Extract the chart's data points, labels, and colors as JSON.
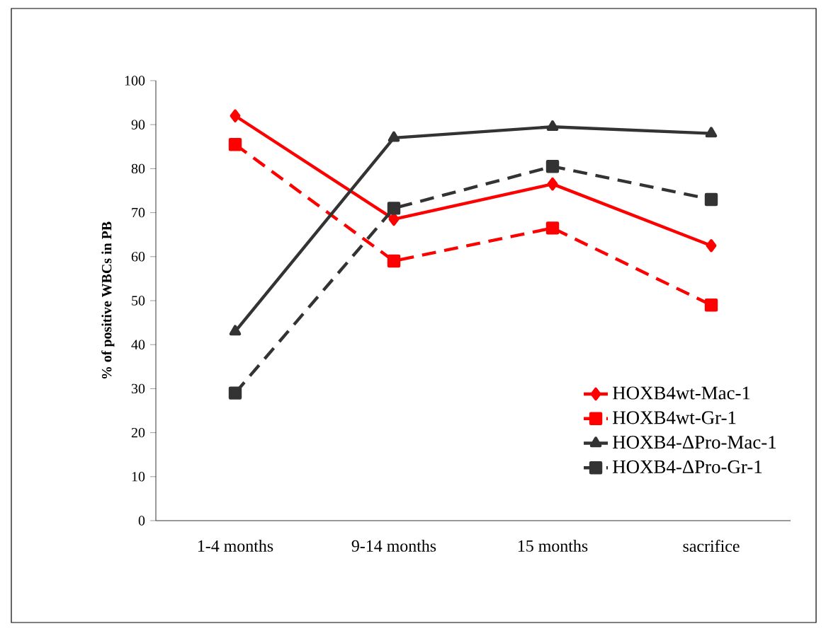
{
  "chart_data": {
    "type": "line",
    "ylabel": "% of positive WBCs in PB",
    "categories": [
      "1-4 months",
      "9-14 months",
      "15 months",
      "sacrifice"
    ],
    "series": [
      {
        "name": "HOXB4wt-Mac-1",
        "color": "#ff0000",
        "marker": "diamond",
        "line_style": "solid",
        "values": [
          92,
          68.5,
          76.5,
          62.5
        ]
      },
      {
        "name": "HOXB4wt-Gr-1",
        "color": "#ff0000",
        "marker": "square",
        "line_style": "dashed",
        "values": [
          85.5,
          59,
          66.5,
          49
        ]
      },
      {
        "name": "HOXB4-ΔPro-Mac-1",
        "color": "#333333",
        "marker": "triangle",
        "line_style": "solid",
        "values": [
          43,
          87,
          89.5,
          88
        ]
      },
      {
        "name": "HOXB4-ΔPro-Gr-1",
        "color": "#333333",
        "marker": "square",
        "line_style": "dashed",
        "values": [
          29,
          71,
          80.5,
          73
        ]
      }
    ],
    "ylim": [
      0,
      100
    ],
    "yticks": [
      0,
      10,
      20,
      30,
      40,
      50,
      60,
      70,
      80,
      90,
      100
    ],
    "grid": false,
    "legend": "bottom right"
  }
}
